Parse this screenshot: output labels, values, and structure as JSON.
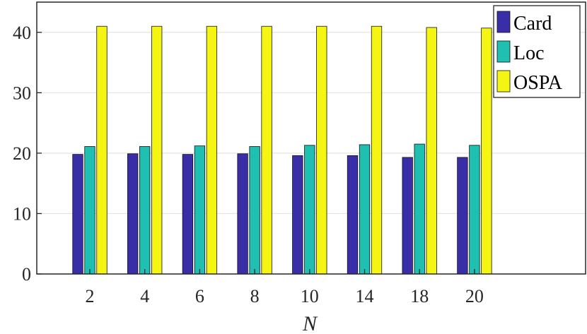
{
  "chart_data": {
    "type": "bar",
    "title": "",
    "xlabel": "N",
    "ylabel": "",
    "categories": [
      "2",
      "4",
      "6",
      "8",
      "10",
      "14",
      "18",
      "20"
    ],
    "ylim": [
      0,
      45
    ],
    "yticks": [
      "0",
      "10",
      "20",
      "30",
      "40"
    ],
    "grid": true,
    "legend_position": "top-right",
    "series": [
      {
        "name": "Card",
        "color": "#3a2ea8",
        "values": [
          19.8,
          19.9,
          19.8,
          19.9,
          19.6,
          19.6,
          19.3,
          19.3
        ]
      },
      {
        "name": "Loc",
        "color": "#1fbfb2",
        "values": [
          21.1,
          21.1,
          21.2,
          21.1,
          21.3,
          21.4,
          21.5,
          21.3
        ]
      },
      {
        "name": "OSPA",
        "color": "#f5f514",
        "values": [
          41.0,
          41.0,
          41.0,
          41.0,
          41.0,
          41.0,
          40.8,
          40.7
        ]
      }
    ]
  }
}
